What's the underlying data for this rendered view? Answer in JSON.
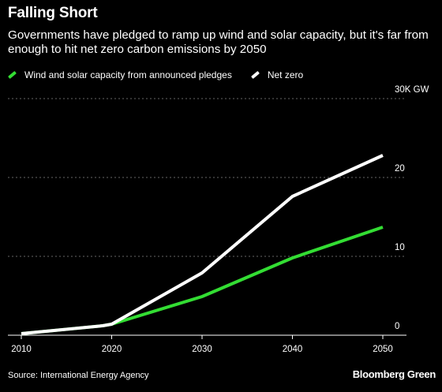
{
  "title": "Falling Short",
  "subtitle": "Governments have pledged to ramp up wind and solar capacity, but it's far from enough to hit net zero carbon emissions by 2050",
  "legend": [
    {
      "label": "Wind and solar capacity from announced pledges",
      "color": "#33dd33"
    },
    {
      "label": "Net zero",
      "color": "#ffffff"
    }
  ],
  "source": "Source: International Energy Agency",
  "brand": "Bloomberg Green",
  "chart_data": {
    "type": "line",
    "x": [
      2010,
      2019,
      2020,
      2030,
      2040,
      2050
    ],
    "series": [
      {
        "name": "Wind and solar capacity from announced pledges",
        "color": "#33dd33",
        "values": [
          0.2,
          1.2,
          1.4,
          4.9,
          9.8,
          13.7
        ]
      },
      {
        "name": "Net zero",
        "color": "#ffffff",
        "values": [
          0.2,
          1.2,
          1.4,
          7.9,
          17.6,
          22.8
        ]
      }
    ],
    "xlim": [
      2010,
      2050
    ],
    "ylim": [
      0,
      30
    ],
    "y_ticks": [
      "0",
      "10",
      "20",
      "30K GW"
    ],
    "x_ticks": [
      "2010",
      "2020",
      "2030",
      "2040",
      "2050"
    ],
    "grid": true,
    "y_axis_position": "right"
  }
}
